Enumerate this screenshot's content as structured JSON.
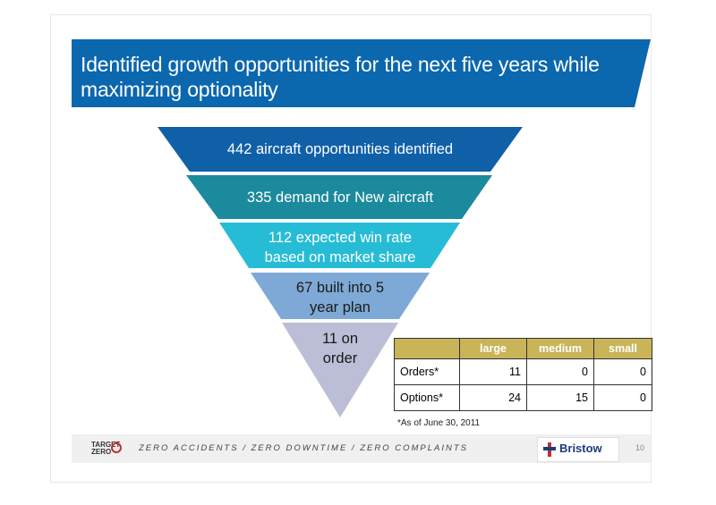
{
  "title": "Identified growth opportunities for the next five years while maximizing optionality",
  "funnel": {
    "layers": [
      {
        "line1": "442 aircraft opportunities identified",
        "line2": "",
        "color": "#1060a8"
      },
      {
        "line1": "335 demand for New aircraft",
        "line2": "",
        "color": "#1b8a9c"
      },
      {
        "line1": "112 expected win rate",
        "line2": "based on market share",
        "color": "#27bcd6"
      },
      {
        "line1": "67 built into 5",
        "line2": "year plan",
        "color": "#7ea9d6"
      },
      {
        "line1": "11 on",
        "line2": "order",
        "color": "#bcbdd6"
      }
    ]
  },
  "table": {
    "headers": [
      "",
      "large",
      "medium",
      "small"
    ],
    "rows": [
      {
        "label": "Orders*",
        "large": "11",
        "medium": "0",
        "small": "0"
      },
      {
        "label": "Options*",
        "large": "24",
        "medium": "15",
        "small": "0"
      }
    ],
    "footnote": "*As of June 30, 2011"
  },
  "footer": {
    "logo_line1": "TARGET",
    "logo_line2": "ZERO",
    "tagline": "ZERO ACCIDENTS / ZERO DOWNTIME / ZERO COMPLAINTS",
    "brand": "Bristow",
    "page_number": "10"
  }
}
